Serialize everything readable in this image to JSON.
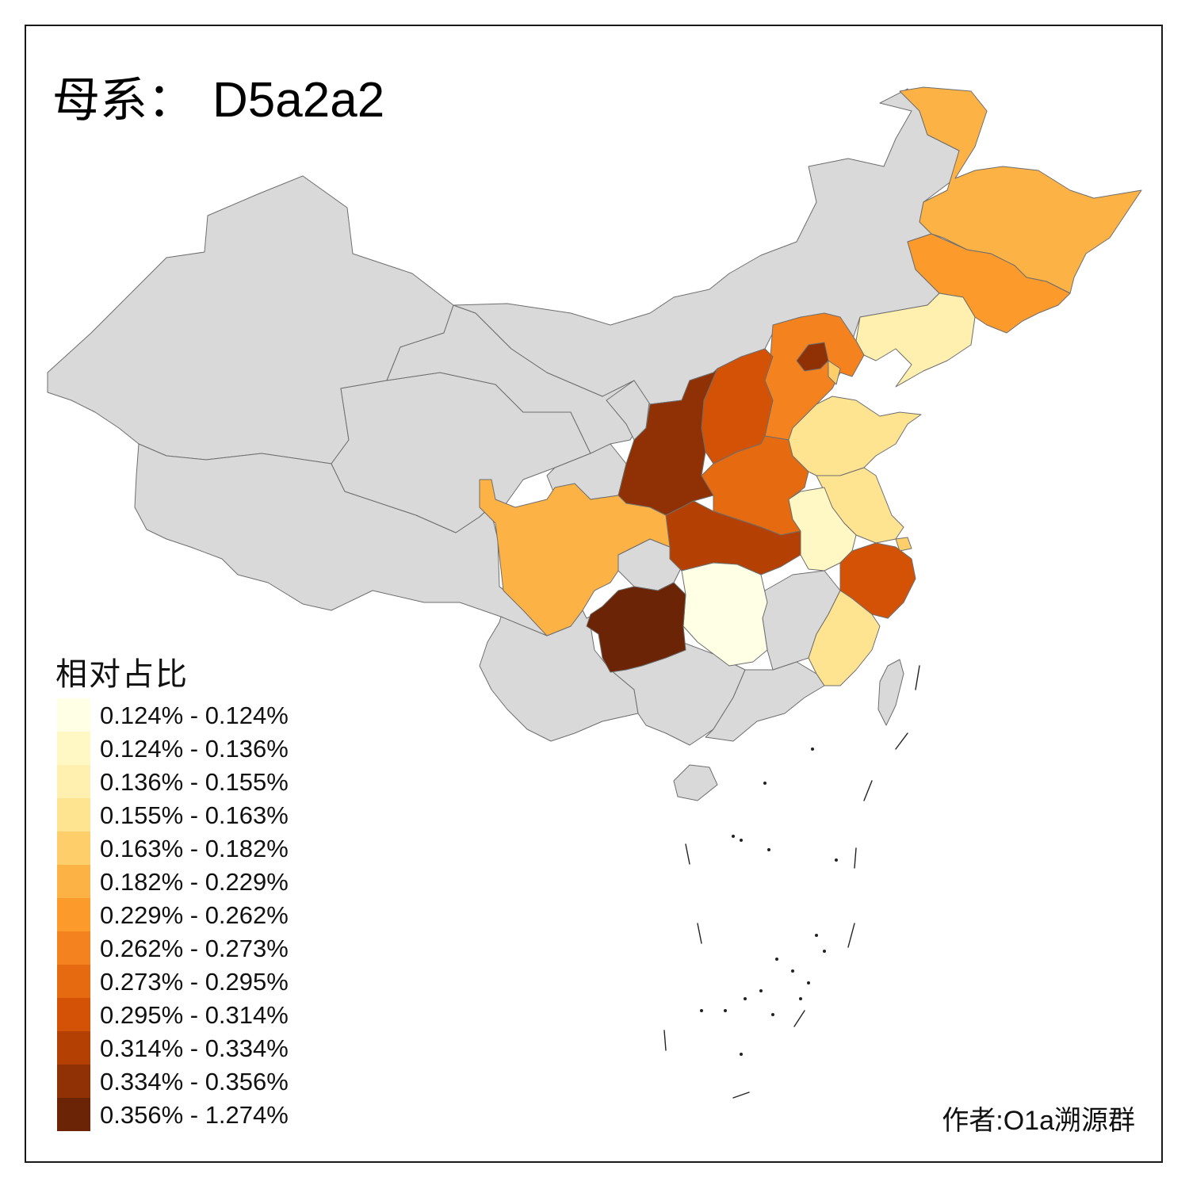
{
  "title": {
    "label": "母系：",
    "value": "D5a2a2"
  },
  "legend": {
    "title": "相对占比",
    "items": [
      {
        "range": "0.124% - 0.124%",
        "color": "#ffffe5"
      },
      {
        "range": "0.124% - 0.136%",
        "color": "#fff7c4"
      },
      {
        "range": "0.136% - 0.155%",
        "color": "#fff0b0"
      },
      {
        "range": "0.155% - 0.163%",
        "color": "#fee391"
      },
      {
        "range": "0.163% - 0.182%",
        "color": "#fece6a"
      },
      {
        "range": "0.182% - 0.229%",
        "color": "#fdb245"
      },
      {
        "range": "0.229% - 0.262%",
        "color": "#fc9a2c"
      },
      {
        "range": "0.262% - 0.273%",
        "color": "#f4821f"
      },
      {
        "range": "0.273% - 0.295%",
        "color": "#e66a10"
      },
      {
        "range": "0.295% - 0.314%",
        "color": "#d35206"
      },
      {
        "range": "0.314% - 0.334%",
        "color": "#b54004"
      },
      {
        "range": "0.334% - 0.356%",
        "color": "#8f3104"
      },
      {
        "range": "0.356% - 1.274%",
        "color": "#6b2405"
      }
    ]
  },
  "no_data_color": "#d9d9d9",
  "provinces": [
    {
      "name": "heilongjiang",
      "bin": 5
    },
    {
      "name": "jilin",
      "bin": 6
    },
    {
      "name": "liaoning",
      "bin": 2
    },
    {
      "name": "hebei",
      "bin": 7
    },
    {
      "name": "beijing",
      "bin": 11
    },
    {
      "name": "tianjin",
      "bin": 4
    },
    {
      "name": "shanxi",
      "bin": 9
    },
    {
      "name": "shaanxi",
      "bin": 11
    },
    {
      "name": "henan",
      "bin": 8
    },
    {
      "name": "hubei",
      "bin": 10
    },
    {
      "name": "shandong",
      "bin": 3
    },
    {
      "name": "jiangsu",
      "bin": 3
    },
    {
      "name": "shanghai",
      "bin": 4
    },
    {
      "name": "anhui",
      "bin": 1
    },
    {
      "name": "zhejiang",
      "bin": 9
    },
    {
      "name": "fujian",
      "bin": 3
    },
    {
      "name": "hunan",
      "bin": 0
    },
    {
      "name": "guizhou",
      "bin": 12
    },
    {
      "name": "sichuan",
      "bin": 5
    },
    {
      "name": "xinjiang",
      "bin": null
    },
    {
      "name": "tibet",
      "bin": null
    },
    {
      "name": "qinghai",
      "bin": null
    },
    {
      "name": "gansu",
      "bin": null
    },
    {
      "name": "ningxia",
      "bin": null
    },
    {
      "name": "inner-mongolia",
      "bin": null
    },
    {
      "name": "yunnan",
      "bin": null
    },
    {
      "name": "guangxi",
      "bin": null
    },
    {
      "name": "guangdong",
      "bin": null
    },
    {
      "name": "jiangxi",
      "bin": null
    },
    {
      "name": "chongqing",
      "bin": null
    },
    {
      "name": "hainan",
      "bin": null
    },
    {
      "name": "taiwan",
      "bin": null
    }
  ],
  "author": "作者:O1a溯源群"
}
